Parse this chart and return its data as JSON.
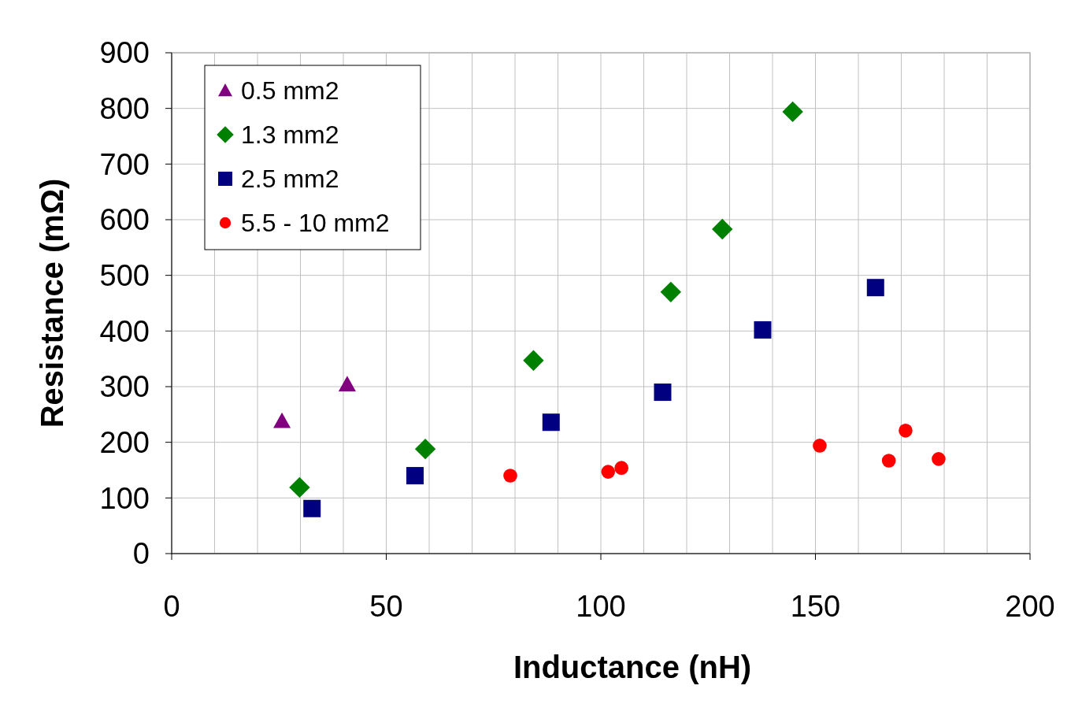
{
  "chart_data": {
    "type": "scatter",
    "xlabel": "Inductance (nH)",
    "ylabel": "Resistance (mΩ)",
    "xlim": [
      0,
      200
    ],
    "ylim": [
      0,
      900
    ],
    "xticks": [
      0,
      {
        "value": 10,
        "label": null
      },
      {
        "value": 20,
        "label": null
      },
      {
        "value": 30,
        "label": null
      },
      {
        "value": 40,
        "label": null
      },
      50,
      {
        "value": 60,
        "label": null
      },
      {
        "value": 70,
        "label": null
      },
      {
        "value": 80,
        "label": null
      },
      {
        "value": 90,
        "label": null
      },
      100,
      {
        "value": 110,
        "label": null
      },
      {
        "value": 120,
        "label": null
      },
      {
        "value": 130,
        "label": null
      },
      {
        "value": 140,
        "label": null
      },
      150,
      {
        "value": 160,
        "label": null
      },
      {
        "value": 170,
        "label": null
      },
      {
        "value": 180,
        "label": null
      },
      {
        "value": 190,
        "label": null
      },
      200
    ],
    "yticks": [
      0,
      100,
      200,
      300,
      400,
      500,
      600,
      700,
      800,
      900
    ],
    "grid": true,
    "legend": "top left",
    "series": [
      {
        "name": "0.5 mm2",
        "color": "#800080",
        "marker": "triangle",
        "x": [
          25.7,
          40.9
        ],
        "values": [
          238,
          304
        ]
      },
      {
        "name": "1.3 mm2",
        "color": "#008000",
        "marker": "diamond",
        "x": [
          29.8,
          59.1,
          84.3,
          116.3,
          128.3,
          144.7
        ],
        "values": [
          119,
          188,
          347,
          470,
          583,
          794
        ]
      },
      {
        "name": "2.5 mm2",
        "color": "#000080",
        "marker": "square",
        "x": [
          32.7,
          56.7,
          88.4,
          114.4,
          137.7,
          164.0
        ],
        "values": [
          81,
          140,
          236,
          290,
          402,
          478
        ]
      },
      {
        "name": "5.5 - 10 mm2",
        "color": "#ff0000",
        "marker": "circle",
        "x": [
          78.9,
          101.7,
          104.8,
          151.0,
          167.1,
          171.0,
          178.7
        ],
        "values": [
          140,
          147,
          154,
          194,
          167,
          221,
          170
        ]
      }
    ]
  }
}
